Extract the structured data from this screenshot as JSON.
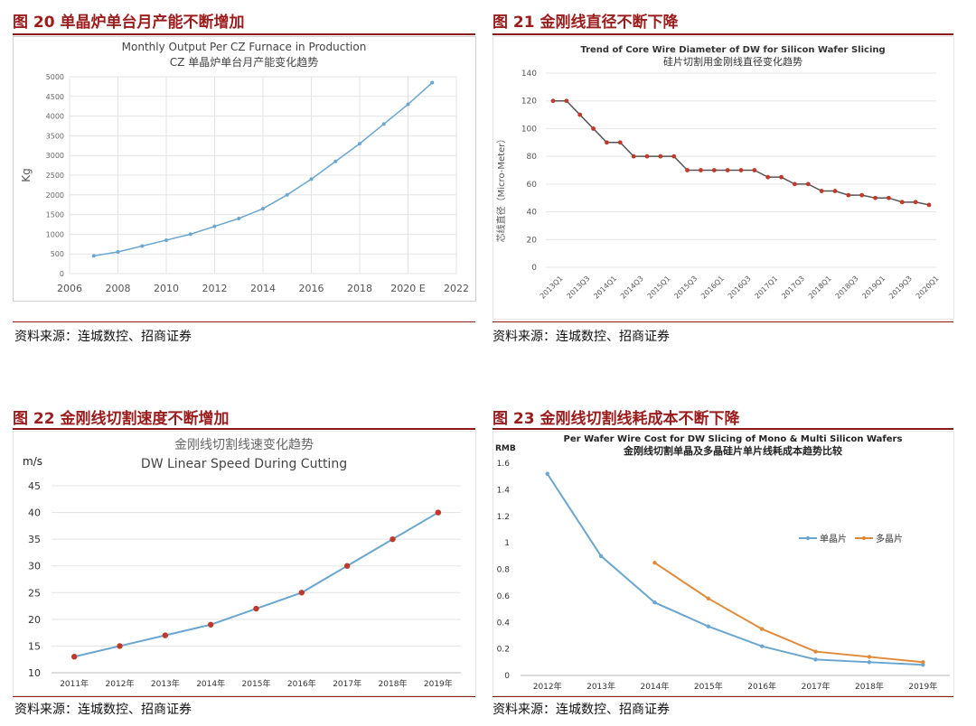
{
  "figures": [
    {
      "title": "图 20 单晶炉单台月产能不断增加",
      "source": "资料来源：连城数控、招商证券"
    },
    {
      "title": "图 21 金刚线直径不断下降",
      "source": "资料来源：连城数控、招商证券"
    },
    {
      "title": "图 22 金刚线切割速度不断增加",
      "source": "资料来源：连城数控、招商证券"
    },
    {
      "title": "图 23 金刚线切割线耗成本不断下降",
      "source": "资料来源：连城数控、招商证券"
    }
  ],
  "chart_data": [
    {
      "type": "line",
      "title": "Monthly Output Per CZ Furnace in Production",
      "subtitle": "CZ 单晶炉单台月产能变化趋势",
      "ylabel": "Kg",
      "xlabel": "",
      "x": [
        2007,
        2008,
        2009,
        2010,
        2011,
        2012,
        2013,
        2014,
        2015,
        2016,
        2017,
        2018,
        2019,
        2020,
        2021
      ],
      "values": [
        450,
        550,
        700,
        850,
        1000,
        1200,
        1400,
        1650,
        2000,
        2400,
        2850,
        3300,
        3800,
        4300,
        4850
      ],
      "xlim": [
        2006,
        2022
      ],
      "ylim": [
        0,
        5000
      ],
      "xticks": [
        "2006",
        "2008",
        "2010",
        "2012",
        "2014",
        "2016",
        "2018",
        "2020 E",
        "2022"
      ],
      "yticks": [
        "0",
        "500",
        "1000",
        "1500",
        "2000",
        "2500",
        "3000",
        "3500",
        "4000",
        "4500",
        "5000"
      ],
      "color": "#6aa6cf",
      "grid": true
    },
    {
      "type": "line",
      "title": "Trend of Core Wire Diameter of DW for Silicon Wafer Slicing",
      "subtitle": "硅片切割用金刚线直径变化趋势",
      "ylabel": "芯线直径（Micro-Meter）",
      "categories": [
        "2013Q1",
        "2013Q2",
        "2013Q3",
        "2013Q4",
        "2014Q1",
        "2014Q2",
        "2014Q3",
        "2014Q4",
        "2015Q1",
        "2015Q2",
        "2015Q3",
        "2015Q4",
        "2016Q1",
        "2016Q2",
        "2016Q3",
        "2016Q4",
        "2017Q1",
        "2017Q2",
        "2017Q3",
        "2017Q4",
        "2018Q1",
        "2018Q2",
        "2018Q3",
        "2018Q4",
        "2019Q1",
        "2019Q2",
        "2019Q3",
        "2019Q4",
        "2020Q1"
      ],
      "tick_labels": [
        "2013Q1",
        "2013Q3",
        "2014Q1",
        "2014Q3",
        "2015Q1",
        "2015Q3",
        "2016Q1",
        "2016Q3",
        "2017Q1",
        "2017Q3",
        "2018Q1",
        "2018Q3",
        "2019Q1",
        "2019Q3",
        "2020Q1"
      ],
      "values": [
        120,
        120,
        110,
        100,
        90,
        90,
        80,
        80,
        80,
        80,
        70,
        70,
        70,
        70,
        70,
        70,
        65,
        65,
        60,
        60,
        55,
        55,
        52,
        52,
        50,
        50,
        47,
        47,
        45
      ],
      "ylim": [
        0,
        140
      ],
      "yticks": [
        "0",
        "20",
        "40",
        "60",
        "80",
        "100",
        "120",
        "140"
      ],
      "line_color": "#555555",
      "marker_color": "#c0392b",
      "grid": true
    },
    {
      "type": "line",
      "title": "金刚线切割线速变化趋势",
      "subtitle": "DW Linear Speed During Cutting",
      "ylabel": "m/s",
      "categories": [
        "2011年",
        "2012年",
        "2013年",
        "2014年",
        "2015年",
        "2016年",
        "2017年",
        "2018年",
        "2019年"
      ],
      "values": [
        13,
        15,
        17,
        19,
        22,
        25,
        30,
        35,
        40
      ],
      "ylim": [
        10,
        45
      ],
      "yticks": [
        "10",
        "15",
        "20",
        "25",
        "30",
        "35",
        "40",
        "45"
      ],
      "line_color": "#6aa6cf",
      "marker_color": "#c0392b",
      "grid": true
    },
    {
      "type": "line",
      "title": "Per Wafer Wire Cost for DW Slicing of Mono & Multi Silicon Wafers",
      "subtitle": "金刚线切割单晶及多晶硅片单片线耗成本趋势比较",
      "ylabel": "RMB",
      "categories": [
        "2012年",
        "2013年",
        "2014年",
        "2015年",
        "2016年",
        "2017年",
        "2018年",
        "2019年"
      ],
      "series": [
        {
          "name": "单晶片",
          "values": [
            1.52,
            0.9,
            0.55,
            0.37,
            0.22,
            0.12,
            0.1,
            0.08
          ],
          "color": "#6aa6cf"
        },
        {
          "name": "多晶片",
          "values": [
            null,
            null,
            0.85,
            0.58,
            0.35,
            0.18,
            0.14,
            0.1
          ],
          "color": "#e08a3c"
        }
      ],
      "ylim": [
        0,
        1.6
      ],
      "yticks": [
        "0",
        "0.2",
        "0.4",
        "0.6",
        "0.8",
        "1",
        "1.2",
        "1.4",
        "1.6"
      ],
      "legend": "top-right",
      "grid": true
    }
  ]
}
